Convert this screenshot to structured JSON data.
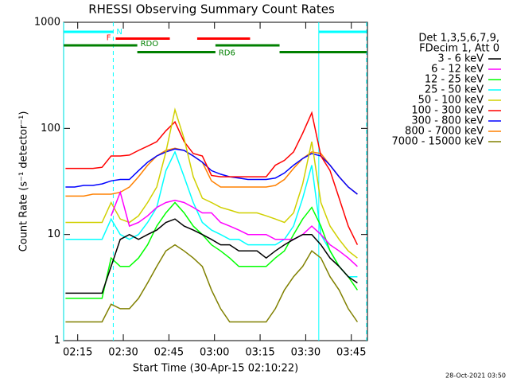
{
  "chart_data": {
    "type": "line",
    "title": "RHESSI Observing Summary Count Rates",
    "xlabel": "Start Time (30-Apr-15 02:10:22)",
    "ylabel": "Count Rate (s⁻¹ detector⁻¹)",
    "footer": "28-Oct-2021 03:50",
    "legend_header": [
      "Det 1,3,5,6,7,9,",
      "FDecim 1, Att 0"
    ],
    "log_y": true,
    "xlim": [
      10.37,
      110.3
    ],
    "ylim": [
      1,
      1000
    ],
    "xticks": [
      {
        "value": 15,
        "label": "02:15"
      },
      {
        "value": 30,
        "label": "02:30"
      },
      {
        "value": 45,
        "label": "02:45"
      },
      {
        "value": 60,
        "label": "03:00"
      },
      {
        "value": 75,
        "label": "03:15"
      },
      {
        "value": 90,
        "label": "03:30"
      },
      {
        "value": 105,
        "label": "03:45"
      }
    ],
    "yticks": [
      1,
      10,
      100,
      1000
    ],
    "x": [
      11,
      14,
      17,
      20,
      23,
      26,
      29,
      32,
      35,
      38,
      41,
      44,
      47,
      50,
      53,
      56,
      59,
      62,
      65,
      68,
      71,
      74,
      77,
      80,
      83,
      86,
      89,
      92,
      95,
      98,
      101,
      104,
      107
    ],
    "series": [
      {
        "name": "3 - 6 keV",
        "color": "#000000",
        "values": [
          2.8,
          2.8,
          2.8,
          2.8,
          2.8,
          5,
          9,
          10,
          9,
          10,
          11,
          13,
          14,
          12,
          11,
          10,
          9,
          8,
          8,
          7,
          7,
          7,
          6,
          7,
          8,
          9,
          10,
          10,
          8,
          6,
          5,
          4,
          3.5
        ]
      },
      {
        "name": "6 - 12 keV",
        "color": "#ff00ff",
        "values": [
          null,
          null,
          null,
          null,
          null,
          15,
          25,
          12,
          13,
          15,
          18,
          20,
          21,
          20,
          18,
          16,
          16,
          13,
          12,
          11,
          10,
          10,
          10,
          9,
          9,
          9,
          10,
          12,
          10,
          8,
          7,
          6,
          5
        ]
      },
      {
        "name": "12 - 25 keV",
        "color": "#00ff00",
        "values": [
          2.5,
          2.5,
          2.5,
          2.5,
          2.5,
          6,
          5,
          5,
          6,
          8,
          12,
          16,
          20,
          16,
          12,
          10,
          8,
          7,
          6,
          5,
          5,
          5,
          5,
          6,
          7,
          10,
          14,
          18,
          12,
          7,
          5,
          4,
          3
        ]
      },
      {
        "name": "25 - 50 keV",
        "color": "#00ffff",
        "values": [
          9,
          9,
          9,
          9,
          9,
          14,
          10,
          9,
          10,
          13,
          18,
          40,
          60,
          35,
          20,
          13,
          11,
          10,
          9,
          9,
          8,
          8,
          8,
          8,
          9,
          12,
          22,
          45,
          10,
          7,
          5,
          4,
          4
        ]
      },
      {
        "name": "50 - 100 keV",
        "color": "#d0d000",
        "values": [
          13,
          13,
          13,
          13,
          13,
          20,
          14,
          13,
          15,
          20,
          28,
          60,
          150,
          80,
          35,
          22,
          20,
          18,
          17,
          16,
          16,
          16,
          15,
          14,
          13,
          16,
          30,
          75,
          20,
          12,
          9,
          7,
          6
        ]
      },
      {
        "name": "100 - 300 keV",
        "color": "#ff0000",
        "values": [
          42,
          42,
          42,
          42,
          43,
          55,
          55,
          56,
          62,
          68,
          75,
          95,
          115,
          75,
          58,
          55,
          36,
          35,
          35,
          35,
          35,
          35,
          35,
          45,
          50,
          60,
          90,
          140,
          55,
          40,
          22,
          12,
          8
        ]
      },
      {
        "name": "300 - 800 keV",
        "color": "#0000ff",
        "values": [
          28,
          28,
          29,
          29,
          30,
          32,
          33,
          33,
          40,
          48,
          55,
          60,
          64,
          62,
          55,
          48,
          40,
          37,
          35,
          34,
          33,
          33,
          33,
          34,
          38,
          45,
          52,
          58,
          55,
          45,
          35,
          28,
          24
        ]
      },
      {
        "name": "800 - 7000 keV",
        "color": "#ff8000",
        "values": [
          23,
          23,
          23,
          24,
          24,
          24,
          25,
          28,
          35,
          45,
          55,
          62,
          65,
          62,
          55,
          48,
          32,
          28,
          28,
          28,
          28,
          28,
          28,
          29,
          33,
          42,
          52,
          60,
          58,
          45,
          35,
          28,
          24
        ]
      },
      {
        "name": "7000 - 15000 keV",
        "color": "#808000",
        "values": [
          1.5,
          1.5,
          1.5,
          1.5,
          1.5,
          2.2,
          2,
          2,
          2.5,
          3.5,
          5,
          7,
          8,
          7,
          6,
          5,
          3,
          2,
          1.5,
          1.5,
          1.5,
          1.5,
          1.5,
          2,
          3,
          4,
          5,
          7,
          6,
          4,
          3,
          2,
          1.5
        ]
      }
    ],
    "vertical_lines": [
      {
        "x": 10.4,
        "style": "solid",
        "color": "#00ffff"
      },
      {
        "x": 26.7,
        "style": "dashed",
        "color": "#00ffff"
      },
      {
        "x": 94.3,
        "style": "solid",
        "color": "#00ffff"
      },
      {
        "x": 110,
        "style": "dashed",
        "color": "#00ffff"
      }
    ],
    "flags": [
      {
        "name": "N",
        "color": "#00ffff",
        "segments": [
          [
            10.4,
            26.7
          ],
          [
            94.3,
            110
          ]
        ]
      },
      {
        "name": "F",
        "color": "#ff0000",
        "segments": [
          [
            27.5,
            45.3
          ],
          [
            54.3,
            71.7
          ]
        ]
      },
      {
        "name": "RDO",
        "color": "#008000",
        "segments": [
          [
            10.4,
            34.6
          ],
          [
            60.3,
            81.4
          ]
        ]
      },
      {
        "name": "RD6",
        "color": "#008000",
        "segments": [
          [
            34.6,
            60.3
          ],
          [
            81.4,
            110
          ]
        ]
      }
    ]
  }
}
